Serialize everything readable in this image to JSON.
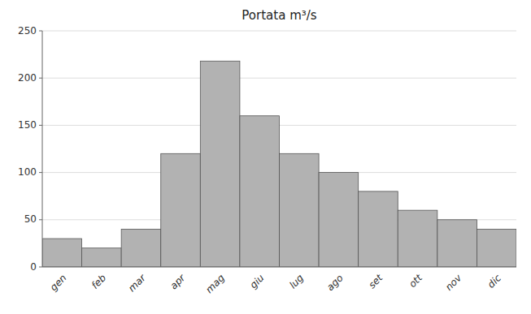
{
  "chart_data": {
    "type": "bar",
    "title": "Portata m³/s",
    "categories": [
      "gen",
      "feb",
      "mar",
      "apr",
      "mag",
      "giu",
      "lug",
      "ago",
      "set",
      "ott",
      "nov",
      "dic"
    ],
    "values": [
      30,
      20,
      40,
      120,
      218,
      160,
      120,
      100,
      80,
      60,
      50,
      40
    ],
    "color": "#b2b2b2",
    "ylim": [
      0,
      250
    ],
    "yticks": [
      0,
      50,
      100,
      150,
      200,
      250
    ],
    "grid": true
  }
}
